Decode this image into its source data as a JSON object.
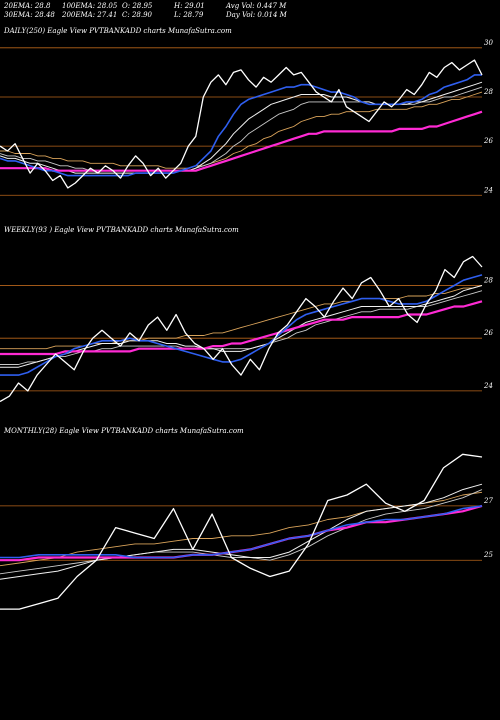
{
  "header": {
    "row1": [
      "20EMA: 28.8",
      "100EMA: 28.05",
      "O: 28.95",
      "H: 29.01",
      "Avg Vol: 0.447  M"
    ],
    "row2": [
      "30EMA: 28.48",
      "200EMA: 27.41",
      "C: 28.90",
      "L: 28.79",
      "Day Vol: 0.014  M"
    ]
  },
  "colors": {
    "background": "#000000",
    "gridline": "#b8651b",
    "price": "#ffffff",
    "ema20": "#2f5ff0",
    "ema_fast": "#f0f0f0",
    "ema_mid": "#c9c9c9",
    "ema_slow": "#d9a35a",
    "ema200": "#ff2ad4"
  },
  "chart_data": [
    {
      "type": "line",
      "title": "DAILY(250) Eagle  View  PVTBANKADD charts MunafaSutra.com",
      "ylim": [
        23.4,
        30.4
      ],
      "yticks": [
        24,
        26,
        28,
        30
      ],
      "grid": true,
      "series": [
        {
          "role": "price",
          "values": [
            26.0,
            25.8,
            26.1,
            25.5,
            24.9,
            25.3,
            25.0,
            24.6,
            24.8,
            24.3,
            24.5,
            24.8,
            25.1,
            24.9,
            25.2,
            25.0,
            24.7,
            25.2,
            25.6,
            25.3,
            24.8,
            25.1,
            24.7,
            25.0,
            25.3,
            26.0,
            26.4,
            28.0,
            28.6,
            28.9,
            28.5,
            29.0,
            29.1,
            28.7,
            28.4,
            28.8,
            28.6,
            28.9,
            29.2,
            28.9,
            29.0,
            28.6,
            28.2,
            28.0,
            27.8,
            28.3,
            27.6,
            27.4,
            27.2,
            27.0,
            27.4,
            27.8,
            27.6,
            27.9,
            28.3,
            28.1,
            28.5,
            29.0,
            28.8,
            29.2,
            29.4,
            29.1,
            29.3,
            29.5,
            28.9
          ]
        },
        {
          "role": "ema20",
          "values": [
            25.5,
            25.4,
            25.4,
            25.3,
            25.2,
            25.1,
            25.0,
            25.0,
            24.9,
            24.8,
            24.8,
            24.8,
            24.8,
            24.8,
            24.8,
            24.8,
            24.8,
            24.8,
            24.9,
            24.9,
            24.9,
            24.9,
            24.9,
            24.9,
            25.0,
            25.1,
            25.2,
            25.5,
            25.8,
            26.4,
            26.8,
            27.3,
            27.7,
            27.9,
            28.0,
            28.1,
            28.2,
            28.3,
            28.4,
            28.4,
            28.5,
            28.5,
            28.4,
            28.3,
            28.2,
            28.2,
            28.1,
            28.0,
            27.8,
            27.7,
            27.7,
            27.7,
            27.7,
            27.7,
            27.8,
            27.8,
            27.9,
            28.1,
            28.2,
            28.4,
            28.5,
            28.6,
            28.7,
            28.9,
            28.9
          ]
        },
        {
          "role": "ema_fast",
          "values": [
            25.6,
            25.5,
            25.5,
            25.4,
            25.3,
            25.3,
            25.2,
            25.1,
            25.0,
            25.0,
            24.9,
            24.9,
            24.9,
            24.9,
            24.9,
            24.9,
            24.9,
            24.9,
            24.9,
            24.9,
            24.9,
            24.9,
            24.9,
            24.9,
            25.0,
            25.0,
            25.1,
            25.3,
            25.5,
            25.8,
            26.1,
            26.5,
            26.8,
            27.1,
            27.3,
            27.5,
            27.7,
            27.8,
            27.9,
            28.0,
            28.1,
            28.1,
            28.1,
            28.1,
            28.0,
            28.0,
            28.0,
            27.9,
            27.8,
            27.8,
            27.7,
            27.7,
            27.7,
            27.7,
            27.7,
            27.8,
            27.8,
            27.9,
            28.0,
            28.1,
            28.2,
            28.3,
            28.4,
            28.5,
            28.6
          ]
        },
        {
          "role": "ema_mid",
          "values": [
            25.7,
            25.6,
            25.6,
            25.5,
            25.5,
            25.4,
            25.4,
            25.3,
            25.2,
            25.2,
            25.1,
            25.1,
            25.0,
            25.0,
            25.0,
            25.0,
            25.0,
            25.0,
            25.0,
            25.0,
            25.0,
            25.0,
            25.0,
            25.0,
            25.0,
            25.0,
            25.1,
            25.2,
            25.3,
            25.5,
            25.7,
            26.0,
            26.2,
            26.5,
            26.7,
            26.9,
            27.1,
            27.3,
            27.4,
            27.5,
            27.7,
            27.8,
            27.8,
            27.8,
            27.8,
            27.8,
            27.8,
            27.8,
            27.8,
            27.7,
            27.7,
            27.7,
            27.7,
            27.7,
            27.7,
            27.7,
            27.8,
            27.8,
            27.9,
            28.0,
            28.0,
            28.1,
            28.2,
            28.3,
            28.4
          ]
        },
        {
          "role": "ema_slow",
          "values": [
            25.8,
            25.8,
            25.7,
            25.7,
            25.7,
            25.6,
            25.6,
            25.5,
            25.5,
            25.4,
            25.4,
            25.4,
            25.3,
            25.3,
            25.3,
            25.3,
            25.2,
            25.2,
            25.2,
            25.2,
            25.2,
            25.2,
            25.1,
            25.1,
            25.1,
            25.1,
            25.2,
            25.2,
            25.3,
            25.4,
            25.5,
            25.7,
            25.8,
            26.0,
            26.1,
            26.3,
            26.4,
            26.6,
            26.7,
            26.8,
            27.0,
            27.1,
            27.2,
            27.2,
            27.3,
            27.3,
            27.4,
            27.4,
            27.4,
            27.4,
            27.5,
            27.5,
            27.5,
            27.5,
            27.5,
            27.6,
            27.6,
            27.7,
            27.7,
            27.8,
            27.9,
            27.9,
            28.0,
            28.1,
            28.2
          ]
        },
        {
          "role": "ema200",
          "values": [
            25.1,
            25.1,
            25.1,
            25.1,
            25.1,
            25.1,
            25.1,
            25.0,
            25.0,
            25.0,
            25.0,
            25.0,
            25.0,
            25.0,
            25.0,
            25.0,
            25.0,
            25.0,
            25.0,
            25.0,
            25.0,
            25.0,
            25.0,
            25.0,
            25.0,
            25.0,
            25.0,
            25.1,
            25.2,
            25.3,
            25.4,
            25.5,
            25.6,
            25.7,
            25.8,
            25.9,
            26.0,
            26.1,
            26.2,
            26.3,
            26.4,
            26.5,
            26.5,
            26.6,
            26.6,
            26.6,
            26.6,
            26.6,
            26.6,
            26.6,
            26.6,
            26.6,
            26.6,
            26.7,
            26.7,
            26.7,
            26.7,
            26.8,
            26.8,
            26.9,
            27.0,
            27.1,
            27.2,
            27.3,
            27.4
          ]
        }
      ]
    },
    {
      "type": "line",
      "title": "WEEKLY(93                    ) Eagle  View  PVTBANKADD charts MunafaSutra.com",
      "ylim": [
        23.2,
        29.8
      ],
      "yticks": [
        24,
        26,
        28
      ],
      "grid": true,
      "series": [
        {
          "role": "price",
          "values": [
            23.6,
            23.8,
            24.3,
            24.0,
            24.6,
            25.0,
            25.4,
            25.1,
            24.8,
            25.5,
            26.0,
            26.3,
            26.0,
            25.7,
            26.2,
            25.9,
            26.5,
            26.8,
            26.3,
            26.9,
            26.2,
            25.8,
            25.6,
            25.2,
            25.6,
            25.0,
            24.6,
            25.2,
            24.8,
            25.6,
            26.2,
            26.5,
            27.0,
            27.5,
            27.2,
            26.8,
            27.4,
            27.9,
            27.5,
            28.1,
            28.3,
            27.8,
            27.2,
            27.5,
            26.9,
            26.6,
            27.3,
            27.8,
            28.6,
            28.3,
            28.9,
            29.1,
            28.7
          ]
        },
        {
          "role": "ema20",
          "values": [
            24.6,
            24.6,
            24.6,
            24.7,
            24.9,
            25.1,
            25.3,
            25.4,
            25.6,
            25.7,
            25.8,
            25.9,
            25.9,
            25.9,
            26.0,
            25.9,
            25.9,
            25.8,
            25.7,
            25.6,
            25.5,
            25.4,
            25.3,
            25.2,
            25.1,
            25.1,
            25.2,
            25.4,
            25.6,
            25.8,
            26.1,
            26.4,
            26.7,
            26.9,
            27.0,
            27.1,
            27.2,
            27.3,
            27.4,
            27.5,
            27.5,
            27.5,
            27.4,
            27.3,
            27.3,
            27.3,
            27.4,
            27.6,
            27.8,
            28.0,
            28.2,
            28.3,
            28.4
          ]
        },
        {
          "role": "ema_fast",
          "values": [
            24.9,
            24.9,
            24.9,
            25.0,
            25.1,
            25.2,
            25.3,
            25.4,
            25.5,
            25.6,
            25.7,
            25.8,
            25.8,
            25.8,
            25.9,
            25.9,
            25.9,
            25.9,
            25.8,
            25.8,
            25.7,
            25.7,
            25.6,
            25.6,
            25.5,
            25.5,
            25.5,
            25.6,
            25.7,
            25.8,
            26.0,
            26.2,
            26.4,
            26.6,
            26.7,
            26.8,
            26.9,
            27.0,
            27.1,
            27.2,
            27.2,
            27.2,
            27.2,
            27.2,
            27.2,
            27.2,
            27.3,
            27.4,
            27.5,
            27.6,
            27.8,
            27.9,
            28.0
          ]
        },
        {
          "role": "ema_mid",
          "values": [
            25.0,
            25.0,
            25.0,
            25.1,
            25.1,
            25.2,
            25.3,
            25.3,
            25.4,
            25.5,
            25.5,
            25.6,
            25.6,
            25.7,
            25.7,
            25.7,
            25.7,
            25.7,
            25.7,
            25.7,
            25.6,
            25.6,
            25.6,
            25.6,
            25.6,
            25.6,
            25.6,
            25.6,
            25.7,
            25.8,
            25.9,
            26.0,
            26.2,
            26.3,
            26.5,
            26.6,
            26.7,
            26.8,
            26.9,
            27.0,
            27.0,
            27.1,
            27.1,
            27.1,
            27.1,
            27.2,
            27.2,
            27.3,
            27.4,
            27.5,
            27.6,
            27.7,
            27.8
          ]
        },
        {
          "role": "ema_slow",
          "values": [
            25.6,
            25.6,
            25.6,
            25.6,
            25.6,
            25.6,
            25.7,
            25.7,
            25.7,
            25.7,
            25.8,
            25.8,
            25.8,
            25.9,
            25.9,
            25.9,
            26.0,
            26.0,
            26.0,
            26.0,
            26.1,
            26.1,
            26.1,
            26.2,
            26.2,
            26.3,
            26.4,
            26.5,
            26.6,
            26.7,
            26.8,
            26.9,
            27.0,
            27.1,
            27.2,
            27.3,
            27.3,
            27.4,
            27.4,
            27.5,
            27.5,
            27.5,
            27.5,
            27.5,
            27.6,
            27.6,
            27.6,
            27.7,
            27.7,
            27.8,
            27.9,
            27.9,
            28.0
          ]
        },
        {
          "role": "ema200",
          "values": [
            25.4,
            25.4,
            25.4,
            25.4,
            25.4,
            25.4,
            25.4,
            25.5,
            25.5,
            25.5,
            25.5,
            25.5,
            25.5,
            25.5,
            25.5,
            25.6,
            25.6,
            25.6,
            25.6,
            25.6,
            25.6,
            25.6,
            25.6,
            25.7,
            25.7,
            25.8,
            25.8,
            25.9,
            26.0,
            26.1,
            26.2,
            26.3,
            26.4,
            26.5,
            26.6,
            26.7,
            26.7,
            26.7,
            26.8,
            26.8,
            26.8,
            26.8,
            26.8,
            26.8,
            26.9,
            26.9,
            26.9,
            27.0,
            27.1,
            27.2,
            27.2,
            27.3,
            27.4
          ]
        }
      ]
    },
    {
      "type": "line",
      "title": "MONTHLY(28) Eagle  View  PVTBANKADD charts MunafaSutra.com",
      "ylim": [
        22.8,
        29.5
      ],
      "yticks": [
        25,
        27
      ],
      "grid": true,
      "series": [
        {
          "role": "price",
          "values": [
            23.2,
            23.2,
            23.4,
            23.6,
            24.4,
            25.0,
            26.2,
            26.0,
            25.8,
            26.9,
            25.4,
            26.7,
            25.1,
            24.7,
            24.4,
            24.6,
            25.6,
            27.2,
            27.4,
            27.8,
            27.1,
            26.8,
            27.2,
            28.4,
            28.9,
            28.8
          ]
        },
        {
          "role": "ema20",
          "values": [
            25.1,
            25.1,
            25.2,
            25.2,
            25.2,
            25.2,
            25.2,
            25.1,
            25.1,
            25.1,
            25.2,
            25.2,
            25.3,
            25.4,
            25.6,
            25.8,
            25.9,
            26.1,
            26.3,
            26.4,
            26.5,
            26.5,
            26.6,
            26.7,
            26.9,
            27.0
          ]
        },
        {
          "role": "ema_fast",
          "values": [
            24.3,
            24.4,
            24.5,
            24.6,
            24.8,
            25.0,
            25.1,
            25.2,
            25.3,
            25.4,
            25.4,
            25.3,
            25.2,
            25.1,
            25.1,
            25.3,
            25.7,
            26.1,
            26.5,
            26.8,
            26.9,
            27.0,
            27.1,
            27.3,
            27.6,
            27.8
          ]
        },
        {
          "role": "ema_mid",
          "values": [
            24.5,
            24.6,
            24.7,
            24.8,
            24.9,
            25.0,
            25.1,
            25.2,
            25.3,
            25.3,
            25.3,
            25.2,
            25.1,
            25.1,
            25.0,
            25.2,
            25.5,
            25.9,
            26.2,
            26.5,
            26.7,
            26.8,
            26.9,
            27.1,
            27.3,
            27.6
          ]
        },
        {
          "role": "ema_slow",
          "values": [
            24.8,
            24.9,
            25.0,
            25.1,
            25.3,
            25.4,
            25.5,
            25.6,
            25.6,
            25.7,
            25.8,
            25.8,
            25.9,
            25.9,
            26.0,
            26.2,
            26.3,
            26.5,
            26.6,
            26.8,
            26.9,
            27.0,
            27.1,
            27.2,
            27.4,
            27.5
          ]
        },
        {
          "role": "ema200",
          "values": [
            25.0,
            25.0,
            25.1,
            25.1,
            25.1,
            25.1,
            25.1,
            25.1,
            25.1,
            25.1,
            25.2,
            25.2,
            25.3,
            25.4,
            25.6,
            25.8,
            25.9,
            26.1,
            26.2,
            26.4,
            26.4,
            26.5,
            26.6,
            26.7,
            26.8,
            27.0
          ]
        }
      ]
    }
  ]
}
